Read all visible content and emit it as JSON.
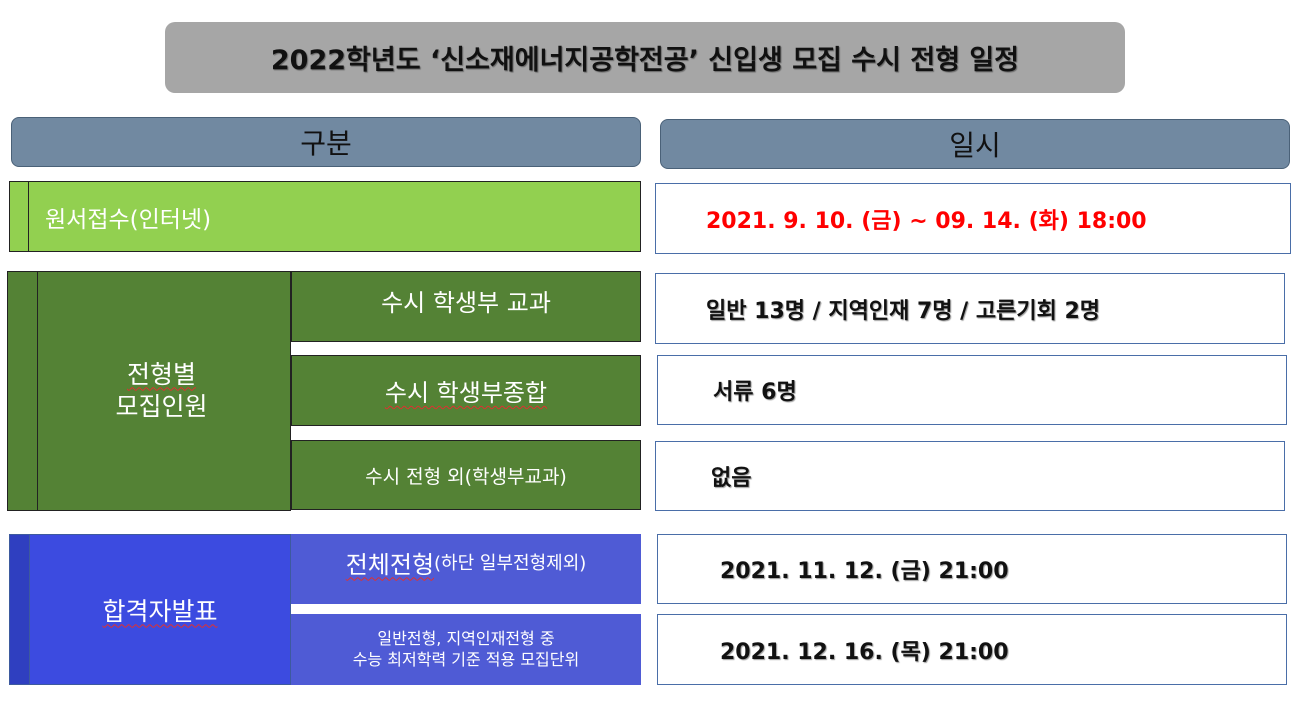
{
  "title": "2022학년도 ‘신소재에너지공학전공’ 신입생 모집 수시 전형 일정",
  "headers": {
    "category": "구분",
    "schedule": "일시"
  },
  "application": {
    "label": "원서접수(인터넷)",
    "value": "2021. 9. 10. (금) ~ 09. 14. (화) 18:00",
    "value_color": "#ff0000"
  },
  "quota": {
    "label_line1": "전형별",
    "label_line2": "모집인원",
    "rows": [
      {
        "label": "수시 학생부 교과",
        "value": "일반 13명 / 지역인재 7명 / 고른기회 2명"
      },
      {
        "label": "수시 학생부종합",
        "value": "서류 6명"
      },
      {
        "label": "수시 전형 외(학생부교과)",
        "value": "없음"
      }
    ]
  },
  "announcement": {
    "label": "합격자발표",
    "row1": {
      "label_main": "전체전형",
      "label_sub": "(하단 일부전형제외)",
      "value": "2021. 11. 12. (금) 21:00"
    },
    "row2": {
      "label_line1": "일반전형, 지역인재전형 중",
      "label_line2": "수능 최저학력 기준 적용 모집단위",
      "value": "2021. 12. 16. (목) 21:00"
    }
  }
}
